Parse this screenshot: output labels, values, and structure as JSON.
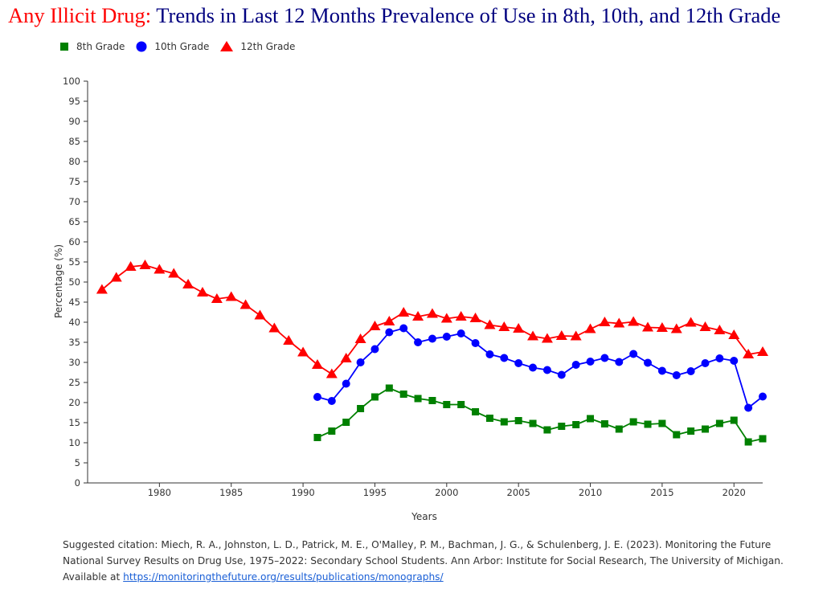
{
  "title": {
    "prefix": "Any Illicit Drug:",
    "text": "Trends in Last 12 Months Prevalence of Use in 8th, 10th, and 12th Grade"
  },
  "legend": [
    {
      "label": "8th Grade",
      "color": "#008000",
      "marker": "square"
    },
    {
      "label": "10th Grade",
      "color": "#0000ff",
      "marker": "circle"
    },
    {
      "label": "12th Grade",
      "color": "#ff0000",
      "marker": "triangle"
    }
  ],
  "chart_data": {
    "type": "line",
    "title": "Any Illicit Drug: Trends in Last 12 Months Prevalence of Use in 8th, 10th, and 12th Grade",
    "xlabel": "Years",
    "ylabel": "Percentage (%)",
    "xlim": [
      1975,
      2022
    ],
    "ylim": [
      0,
      100
    ],
    "xticks": [
      1980,
      1985,
      1990,
      1995,
      2000,
      2005,
      2010,
      2015,
      2020
    ],
    "yticks": [
      0,
      5,
      10,
      15,
      20,
      25,
      30,
      35,
      40,
      45,
      50,
      55,
      60,
      65,
      70,
      75,
      80,
      85,
      90,
      95,
      100
    ],
    "series": [
      {
        "name": "8th Grade",
        "color": "#008000",
        "marker": "square",
        "x": [
          1991,
          1992,
          1993,
          1994,
          1995,
          1996,
          1997,
          1998,
          1999,
          2000,
          2001,
          2002,
          2003,
          2004,
          2005,
          2006,
          2007,
          2008,
          2009,
          2010,
          2011,
          2012,
          2013,
          2014,
          2015,
          2016,
          2017,
          2018,
          2019,
          2020,
          2021,
          2022
        ],
        "values": [
          11.3,
          12.9,
          15.1,
          18.5,
          21.4,
          23.6,
          22.1,
          21.0,
          20.5,
          19.5,
          19.5,
          17.7,
          16.1,
          15.2,
          15.5,
          14.8,
          13.2,
          14.1,
          14.5,
          16.0,
          14.7,
          13.4,
          15.2,
          14.6,
          14.8,
          12.0,
          12.9,
          13.4,
          14.8,
          15.6,
          10.2,
          11.0
        ]
      },
      {
        "name": "10th Grade",
        "color": "#0000ff",
        "marker": "circle",
        "x": [
          1991,
          1992,
          1993,
          1994,
          1995,
          1996,
          1997,
          1998,
          1999,
          2000,
          2001,
          2002,
          2003,
          2004,
          2005,
          2006,
          2007,
          2008,
          2009,
          2010,
          2011,
          2012,
          2013,
          2014,
          2015,
          2016,
          2017,
          2018,
          2019,
          2020,
          2021,
          2022
        ],
        "values": [
          21.4,
          20.4,
          24.7,
          30.0,
          33.3,
          37.5,
          38.5,
          35.0,
          35.9,
          36.4,
          37.2,
          34.8,
          32.0,
          31.1,
          29.8,
          28.7,
          28.1,
          26.9,
          29.4,
          30.2,
          31.1,
          30.1,
          32.1,
          29.9,
          27.9,
          26.8,
          27.8,
          29.8,
          31.0,
          30.4,
          18.7,
          21.5
        ]
      },
      {
        "name": "12th Grade",
        "color": "#ff0000",
        "marker": "triangle",
        "x": [
          1976,
          1977,
          1978,
          1979,
          1980,
          1981,
          1982,
          1983,
          1984,
          1985,
          1986,
          1987,
          1988,
          1989,
          1990,
          1991,
          1992,
          1993,
          1994,
          1995,
          1996,
          1997,
          1998,
          1999,
          2000,
          2001,
          2002,
          2003,
          2004,
          2005,
          2006,
          2007,
          2008,
          2009,
          2010,
          2011,
          2012,
          2013,
          2014,
          2015,
          2016,
          2017,
          2018,
          2019,
          2020,
          2021,
          2022
        ],
        "values": [
          48.1,
          51.1,
          53.8,
          54.2,
          53.1,
          52.1,
          49.4,
          47.4,
          45.8,
          46.3,
          44.3,
          41.7,
          38.5,
          35.4,
          32.5,
          29.4,
          27.1,
          31.0,
          35.8,
          39.0,
          40.2,
          42.4,
          41.4,
          42.1,
          40.9,
          41.4,
          41.0,
          39.3,
          38.8,
          38.4,
          36.5,
          35.9,
          36.6,
          36.5,
          38.3,
          40.0,
          39.7,
          40.1,
          38.7,
          38.6,
          38.3,
          39.9,
          38.8,
          38.0,
          36.8,
          32.0,
          32.6
        ]
      }
    ]
  },
  "citation": {
    "text": "Suggested citation: Miech, R. A., Johnston, L. D., Patrick, M. E., O'Malley, P. M., Bachman, J. G., & Schulenberg, J. E. (2023). Monitoring the Future National Survey Results on Drug Use, 1975–2022: Secondary School Students. Ann Arbor: Institute for Social Research, The University of Michigan. Available at",
    "link": "https://monitoringthefuture.org/results/publications/monographs/"
  }
}
